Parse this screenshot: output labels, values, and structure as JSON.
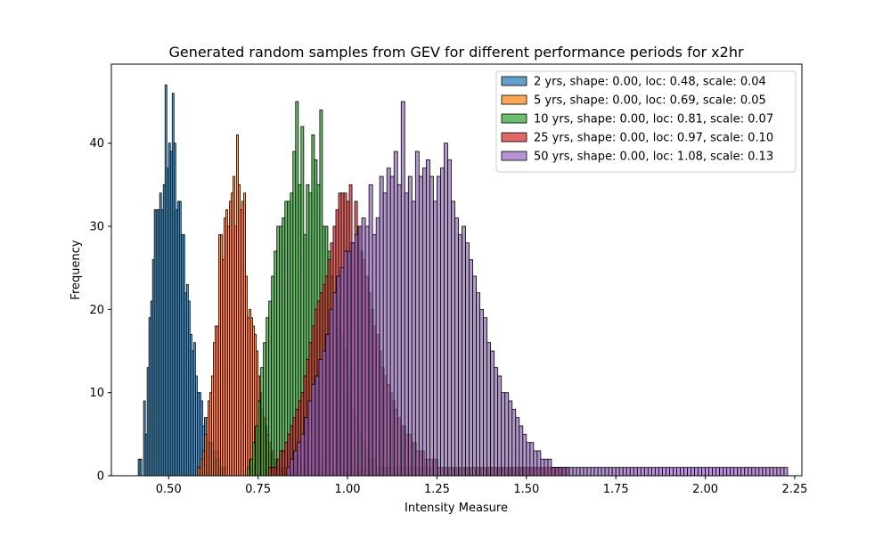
{
  "chart_data": {
    "type": "bar",
    "title": "Generated random samples from GEV for different performance periods for x2hr",
    "xlabel": "Intensity Measure",
    "ylabel": "Frequency",
    "xlim": [
      0.34,
      2.27
    ],
    "ylim": [
      0,
      49.5
    ],
    "xticks": [
      {
        "value": 0.5,
        "label": "0.50"
      },
      {
        "value": 0.75,
        "label": "0.75"
      },
      {
        "value": 1.0,
        "label": "1.00"
      },
      {
        "value": 1.25,
        "label": "1.25"
      },
      {
        "value": 1.5,
        "label": "1.50"
      },
      {
        "value": 1.75,
        "label": "1.75"
      },
      {
        "value": 2.0,
        "label": "2.00"
      },
      {
        "value": 2.25,
        "label": "2.25"
      }
    ],
    "yticks": [
      {
        "value": 0,
        "label": "0"
      },
      {
        "value": 10,
        "label": "10"
      },
      {
        "value": 20,
        "label": "20"
      },
      {
        "value": 30,
        "label": "30"
      },
      {
        "value": 40,
        "label": "40"
      }
    ],
    "grid": false,
    "legend_position": "top-right",
    "bar_edge_color": "#000000",
    "bar_alpha": 0.7,
    "series": [
      {
        "name": "2 yrs, shape: 0.00, loc: 0.48, scale: 0.04",
        "color": "#1f77b4",
        "bin_start": 0.415,
        "bin_width": 0.005,
        "counts": [
          2,
          2,
          0,
          9,
          5,
          13,
          19,
          21,
          26,
          32,
          32,
          32,
          34,
          32,
          35,
          47,
          37,
          40,
          39,
          46,
          40,
          32,
          33,
          33,
          29,
          29,
          22,
          23,
          21,
          17,
          15,
          16,
          12,
          10,
          10,
          9,
          6,
          7,
          5,
          4,
          4,
          4,
          3,
          2,
          3,
          2,
          1,
          1,
          1
        ]
      },
      {
        "name": "5 yrs, shape: 0.00, loc: 0.69, scale: 0.05",
        "color": "#ff7f0e",
        "bin_start": 0.58,
        "bin_width": 0.005,
        "counts": [
          1,
          1,
          2,
          3,
          5,
          7,
          9,
          10,
          12,
          16,
          18,
          18,
          29,
          29,
          26,
          31,
          32,
          30,
          33,
          34,
          36,
          30,
          41,
          35,
          32,
          33,
          34,
          24,
          19,
          20,
          19,
          18,
          17,
          15,
          12,
          10,
          8,
          7,
          6,
          5,
          4,
          3,
          3,
          2,
          2,
          1,
          1,
          1,
          1,
          1,
          1,
          1,
          1,
          1,
          1,
          1,
          1,
          1,
          1,
          1,
          1,
          1,
          1,
          1,
          1,
          1,
          1,
          1,
          1,
          1,
          1,
          1,
          1,
          1,
          1,
          1,
          1,
          1,
          1,
          1,
          1,
          1,
          1,
          1,
          1,
          1,
          1,
          1,
          1,
          1,
          1,
          1,
          1,
          1,
          1,
          1,
          1,
          1,
          1,
          1,
          1,
          1,
          1,
          1,
          1,
          1,
          1,
          1,
          1,
          1,
          1,
          1,
          1,
          1,
          1,
          1,
          1,
          1,
          1,
          1,
          1,
          1,
          1,
          1,
          1,
          1,
          1,
          1,
          1,
          1,
          1,
          1,
          1,
          1,
          1,
          1,
          1,
          1,
          1,
          1,
          1,
          1,
          1,
          1,
          1,
          1,
          1,
          1,
          1,
          1,
          1,
          1,
          1,
          1,
          1,
          1,
          1,
          1,
          1,
          1,
          1,
          1,
          1,
          1,
          1,
          1,
          1,
          1,
          1,
          1,
          1,
          1,
          1,
          1,
          1,
          1,
          1,
          1,
          1,
          1,
          1,
          1,
          1,
          1,
          1,
          1,
          1,
          1,
          1,
          1,
          1,
          1,
          1,
          1,
          1,
          1,
          1,
          1,
          1,
          1,
          1,
          1,
          1
        ]
      },
      {
        "name": "10 yrs, shape: 0.00, loc: 0.81, scale: 0.07",
        "color": "#2ca02c",
        "bin_start": 0.72,
        "bin_width": 0.0075,
        "counts": [
          1,
          2,
          4,
          6,
          9,
          13,
          16,
          19,
          21,
          24,
          27,
          30,
          30,
          31,
          33,
          33,
          34,
          39,
          45,
          35,
          42,
          29,
          35,
          34,
          41,
          38,
          35,
          44,
          30,
          30,
          27,
          24,
          22,
          21,
          19,
          17,
          15,
          12,
          10,
          8,
          7,
          6,
          5,
          4,
          3,
          3,
          2,
          2,
          1,
          1,
          1,
          1,
          1
        ]
      },
      {
        "name": "25 yrs, shape: 0.00, loc: 0.97, scale: 0.10",
        "color": "#d62728",
        "bin_start": 0.78,
        "bin_width": 0.0075,
        "counts": [
          1,
          1,
          1,
          2,
          3,
          3,
          4,
          5,
          6,
          7,
          8,
          9,
          10,
          12,
          14,
          16,
          18,
          20,
          21,
          22,
          23,
          24,
          26,
          28,
          30,
          32,
          34,
          34,
          34,
          33,
          35,
          28,
          33,
          30,
          27,
          26,
          24,
          22,
          20,
          18,
          17,
          15,
          13,
          12,
          11,
          10,
          9,
          8,
          7,
          6,
          6,
          5,
          5,
          4,
          4,
          3,
          3,
          3,
          2,
          2,
          2,
          2,
          2,
          1,
          1,
          1,
          1,
          1,
          1,
          1,
          1,
          1,
          1,
          1,
          1,
          1,
          1,
          1,
          1,
          1,
          1,
          1,
          1,
          1,
          1,
          1,
          1,
          1,
          1,
          1,
          1,
          1,
          1,
          1,
          1,
          1,
          1,
          1,
          1,
          1,
          1,
          1,
          1,
          1,
          1,
          1,
          1,
          1,
          1,
          1,
          1,
          1
        ]
      },
      {
        "name": "50 yrs, shape: 0.00, loc: 1.08, scale: 0.13",
        "color": "#9467bd",
        "bin_start": 0.83,
        "bin_width": 0.01,
        "counts": [
          1,
          2,
          3,
          4,
          5,
          7,
          9,
          11,
          12,
          14,
          15,
          17,
          20,
          22,
          24,
          25,
          27,
          27,
          28,
          29,
          30,
          31,
          30,
          35,
          29,
          31,
          36,
          34,
          37,
          36,
          39,
          35,
          45,
          34,
          36,
          33,
          39,
          36,
          37,
          38,
          36,
          33,
          36,
          37,
          40,
          38,
          33,
          31,
          29,
          30,
          28,
          26,
          24,
          22,
          20,
          19,
          16,
          15,
          13,
          12,
          10,
          10,
          9,
          8,
          7,
          6,
          5,
          4,
          4,
          3,
          3,
          2,
          2,
          2,
          1,
          1,
          1,
          1,
          1,
          1,
          1,
          1,
          1,
          1,
          1,
          1,
          1,
          1,
          1,
          1,
          1,
          1,
          1,
          1,
          1,
          1,
          1,
          1,
          1,
          1,
          1,
          1,
          1,
          1,
          1,
          1,
          1,
          1,
          1,
          1,
          1,
          1,
          1,
          1,
          1,
          1,
          1,
          1,
          1,
          1,
          1,
          1,
          1,
          1,
          1,
          1,
          1,
          1,
          1,
          1,
          1,
          1,
          1,
          1,
          1,
          1,
          1,
          1,
          1,
          1
        ]
      }
    ]
  }
}
